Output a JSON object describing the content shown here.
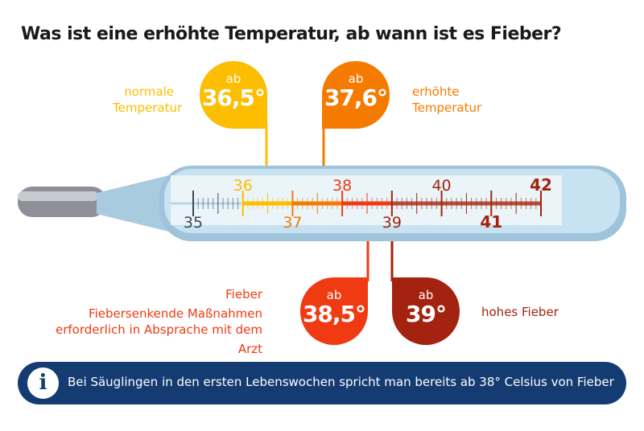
{
  "title": "Was ist eine erhöhte Temperatur, ab wann ist es Fieber?",
  "colors": {
    "normal": "#fdbd00",
    "elevated": "#f57b00",
    "fever": "#f03a12",
    "high_fever": "#a32310",
    "info_bg": "#143c73"
  },
  "markers": [
    {
      "prefix": "ab",
      "value": "36,5°",
      "label_lines": [
        "normale",
        "Temperatur"
      ]
    },
    {
      "prefix": "ab",
      "value": "37,6°",
      "label_lines": [
        "erhöhte",
        "Temperatur"
      ]
    },
    {
      "prefix": "ab",
      "value": "38,5°",
      "label_lines": [
        "Fieber",
        "Fiebersenkende Maßnahmen",
        "erforderlich in Absprache mit dem Arzt"
      ]
    },
    {
      "prefix": "ab",
      "value": "39°",
      "label_lines": [
        "hohes Fieber"
      ]
    }
  ],
  "scale": {
    "min": 35,
    "max": 42,
    "labels_top": [
      "36",
      "38",
      "40",
      "42"
    ],
    "labels_bottom": [
      "35",
      "37",
      "39",
      "41"
    ]
  },
  "info": {
    "icon": "info-icon",
    "text": "Bei Säuglingen in den ersten Lebenswochen spricht man bereits ab 38° Celsius von Fieber"
  }
}
